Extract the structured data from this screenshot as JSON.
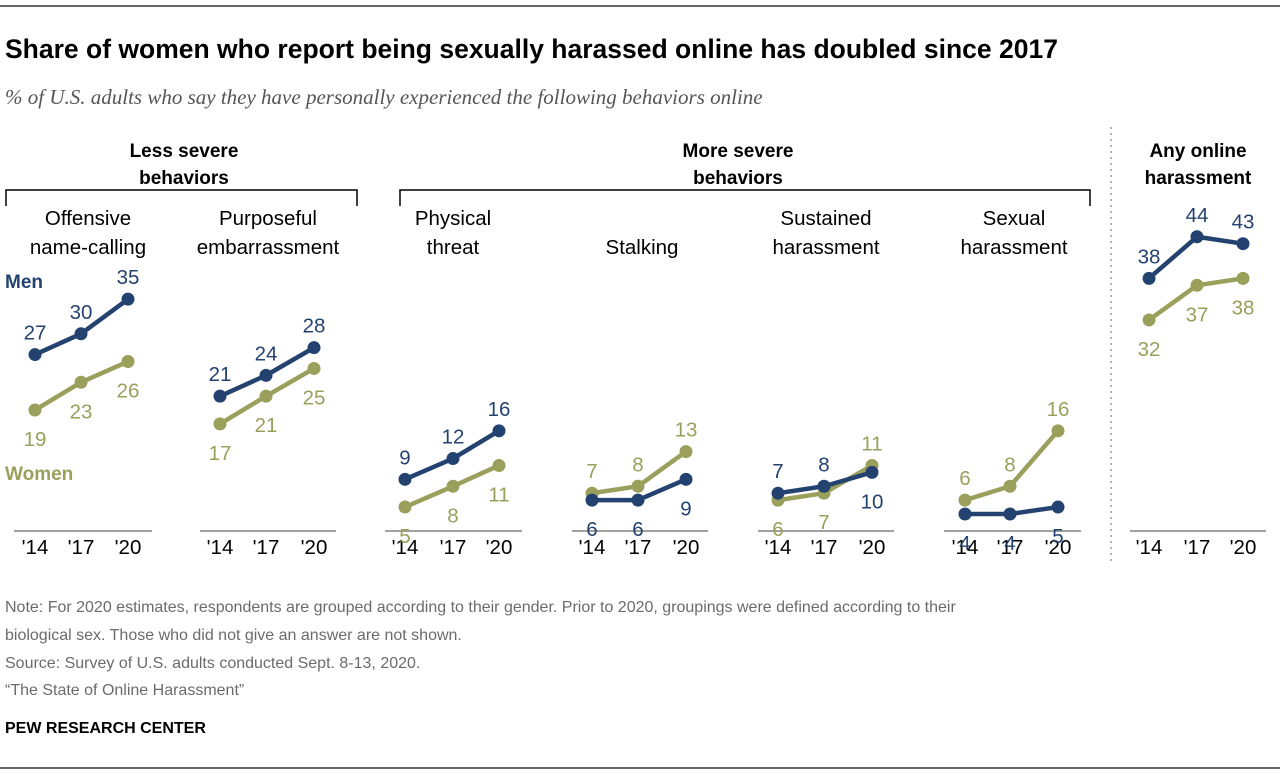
{
  "title": "Share of women who report being sexually harassed online has doubled since 2017",
  "subtitle": "% of U.S. adults who say they have personally experienced the following behaviors online",
  "groups": {
    "less_severe": [
      "Less severe",
      "behaviors"
    ],
    "more_severe": [
      "More severe",
      "behaviors"
    ],
    "any": [
      "Any online",
      "harassment"
    ]
  },
  "legend": {
    "men": "Men",
    "women": "Women"
  },
  "colors": {
    "men": "#24426f",
    "women": "#9aa05b",
    "axis": "#a0a0a0",
    "divider": "#9a9a9a",
    "rule": "#333333"
  },
  "chart_data": {
    "type": "line",
    "x": [
      "'14",
      "'17",
      "'20"
    ],
    "panels": [
      {
        "title": [
          "Offensive",
          "name-calling"
        ],
        "series": [
          {
            "name": "Men",
            "values": [
              27,
              30,
              35
            ]
          },
          {
            "name": "Women",
            "values": [
              19,
              23,
              26
            ]
          }
        ]
      },
      {
        "title": [
          "Purposeful",
          "embarrassment"
        ],
        "series": [
          {
            "name": "Men",
            "values": [
              21,
              24,
              28
            ]
          },
          {
            "name": "Women",
            "values": [
              17,
              21,
              25
            ]
          }
        ]
      },
      {
        "title": [
          "Physical",
          "threat"
        ],
        "series": [
          {
            "name": "Men",
            "values": [
              9,
              12,
              16
            ]
          },
          {
            "name": "Women",
            "values": [
              5,
              8,
              11
            ]
          }
        ]
      },
      {
        "title": [
          "",
          "Stalking"
        ],
        "series": [
          {
            "name": "Men",
            "values": [
              6,
              6,
              9
            ]
          },
          {
            "name": "Women",
            "values": [
              7,
              8,
              13
            ]
          }
        ]
      },
      {
        "title": [
          "Sustained",
          "harassment"
        ],
        "series": [
          {
            "name": "Men",
            "values": [
              7,
              8,
              10
            ]
          },
          {
            "name": "Women",
            "values": [
              6,
              7,
              11
            ]
          }
        ]
      },
      {
        "title": [
          "Sexual",
          "harassment"
        ],
        "series": [
          {
            "name": "Men",
            "values": [
              4,
              4,
              5
            ]
          },
          {
            "name": "Women",
            "values": [
              6,
              8,
              16
            ]
          }
        ]
      },
      {
        "title": [
          "",
          ""
        ],
        "series": [
          {
            "name": "Men",
            "values": [
              38,
              44,
              43
            ]
          },
          {
            "name": "Women",
            "values": [
              32,
              37,
              38
            ]
          }
        ]
      }
    ]
  },
  "notes": [
    "Note: For 2020 estimates, respondents are grouped according to their gender. Prior to 2020, groupings were defined according to their",
    "biological sex. Those who did not give an answer are not shown.",
    "Source: Survey of U.S. adults conducted Sept. 8-13, 2020.",
    "“The State of Online Harassment”"
  ],
  "brand": "PEW RESEARCH CENTER"
}
